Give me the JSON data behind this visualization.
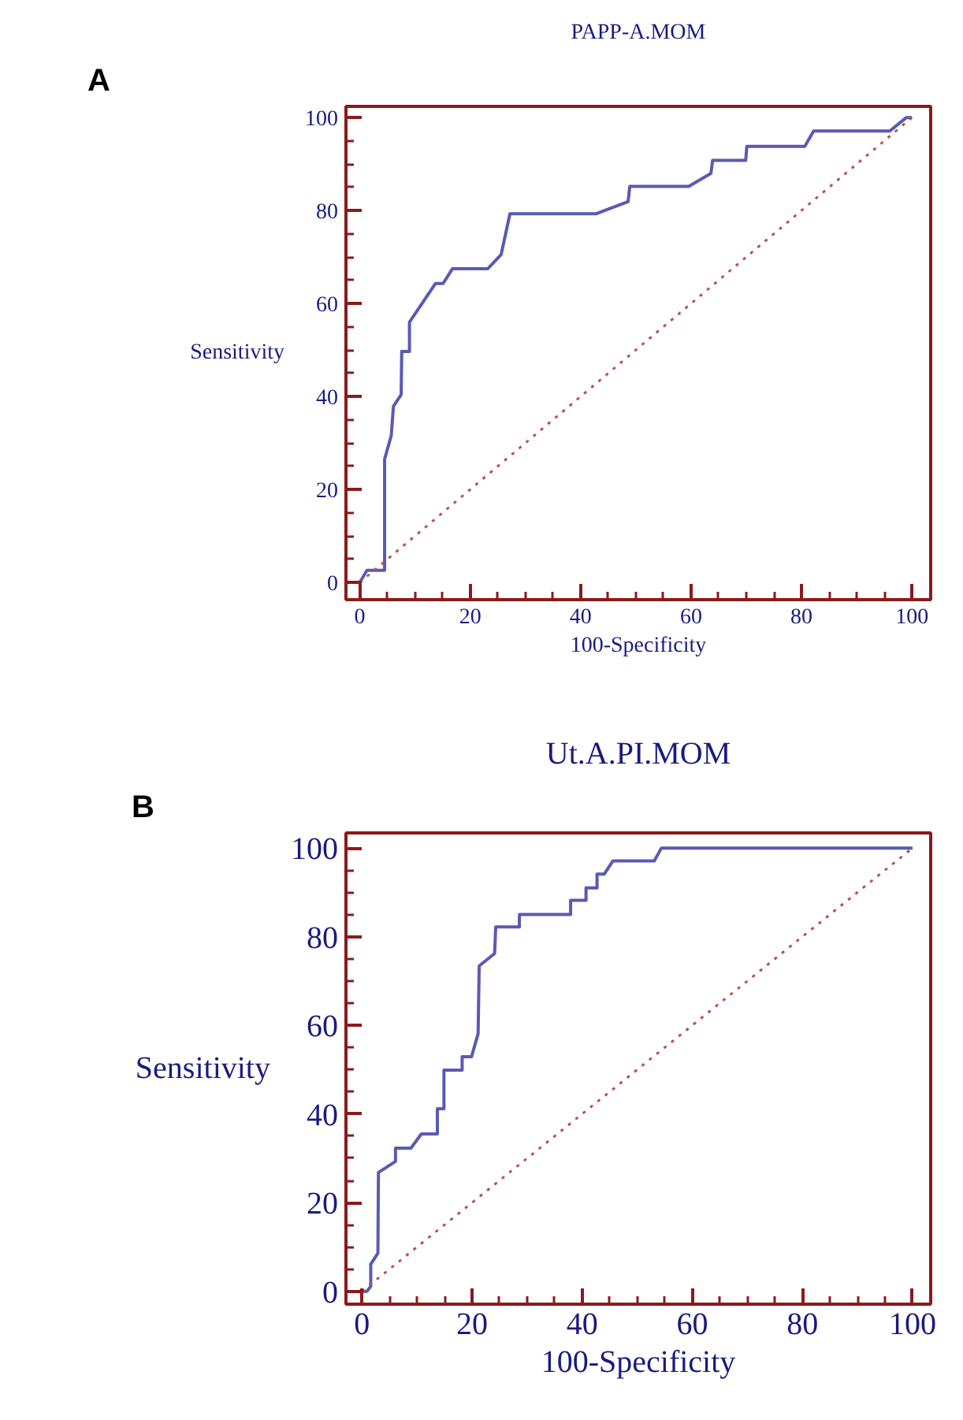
{
  "chart_data": [
    {
      "type": "line",
      "title": "PAPP-A.MOM",
      "xlabel": "100-Specificity",
      "ylabel": "Sensitivity",
      "annotations": [
        "A"
      ],
      "xlim": [
        -2.5,
        103.4
      ],
      "ylim": [
        -3.7,
        102.4
      ],
      "xticks": [
        0,
        {
          "value": 5,
          "label": null
        },
        {
          "value": 10,
          "label": null
        },
        {
          "value": 15,
          "label": null
        },
        20,
        {
          "value": 25,
          "label": null
        },
        {
          "value": 30,
          "label": null
        },
        {
          "value": 35,
          "label": null
        },
        40,
        {
          "value": 45,
          "label": null
        },
        {
          "value": 50,
          "label": null
        },
        {
          "value": 55,
          "label": null
        },
        60,
        {
          "value": 65,
          "label": null
        },
        {
          "value": 70,
          "label": null
        },
        {
          "value": 75,
          "label": null
        },
        80,
        {
          "value": 85,
          "label": null
        },
        {
          "value": 90,
          "label": null
        },
        {
          "value": 95,
          "label": null
        },
        100
      ],
      "yticks": [
        0,
        {
          "value": 5,
          "label": null
        },
        {
          "value": 10,
          "label": null
        },
        {
          "value": 15,
          "label": null
        },
        20,
        {
          "value": 25,
          "label": null
        },
        {
          "value": 30,
          "label": null
        },
        {
          "value": 35,
          "label": null
        },
        40,
        {
          "value": 45,
          "label": null
        },
        {
          "value": 50,
          "label": null
        },
        {
          "value": 55,
          "label": null
        },
        60,
        {
          "value": 65,
          "label": null
        },
        {
          "value": 70,
          "label": null
        },
        {
          "value": 75,
          "label": null
        },
        80,
        {
          "value": 85,
          "label": null
        },
        {
          "value": 90,
          "label": null
        },
        {
          "value": 95,
          "label": null
        },
        100
      ],
      "grid": false,
      "marker": "none",
      "series": [
        {
          "color": "#5a5ab4",
          "line_style": "solid",
          "x": [
            0,
            1.3,
            4.5,
            4.5,
            5.7,
            6.1,
            7.5,
            7.6,
            9,
            9,
            13.7,
            15.1,
            16.8,
            23.2,
            25.6,
            27.2,
            42.8,
            48.6,
            48.9,
            59.6,
            63.6,
            63.9,
            69.9,
            70.1,
            80.6,
            82.2,
            96,
            99,
            100
          ],
          "values": [
            0,
            2.6,
            2.6,
            26.5,
            31.6,
            37.9,
            40.4,
            49.7,
            49.7,
            56,
            64.3,
            64.3,
            67.5,
            67.5,
            70.5,
            79.3,
            79.3,
            81.9,
            85.2,
            85.2,
            88,
            90.8,
            90.8,
            93.8,
            93.8,
            97.1,
            97.1,
            100,
            100
          ]
        },
        {
          "color": "#b85050",
          "line_style": "dotted",
          "x": [
            0,
            100
          ],
          "values": [
            0,
            100
          ]
        }
      ]
    },
    {
      "type": "line",
      "title": "Ut.A.PI.MOM",
      "xlabel": "100-Specificity",
      "ylabel": "Sensitivity",
      "annotations": [
        "B"
      ],
      "xlim": [
        -2.9,
        103.3
      ],
      "ylim": [
        -2.9,
        103.4
      ],
      "xticks": [
        0,
        {
          "value": 5,
          "label": null
        },
        {
          "value": 10,
          "label": null
        },
        {
          "value": 15,
          "label": null
        },
        20,
        {
          "value": 25,
          "label": null
        },
        {
          "value": 30,
          "label": null
        },
        {
          "value": 35,
          "label": null
        },
        40,
        {
          "value": 45,
          "label": null
        },
        {
          "value": 50,
          "label": null
        },
        {
          "value": 55,
          "label": null
        },
        60,
        {
          "value": 65,
          "label": null
        },
        {
          "value": 70,
          "label": null
        },
        {
          "value": 75,
          "label": null
        },
        80,
        {
          "value": 85,
          "label": null
        },
        {
          "value": 90,
          "label": null
        },
        {
          "value": 95,
          "label": null
        },
        100
      ],
      "yticks": [
        0,
        {
          "value": 5,
          "label": null
        },
        {
          "value": 10,
          "label": null
        },
        {
          "value": 15,
          "label": null
        },
        20,
        {
          "value": 25,
          "label": null
        },
        {
          "value": 30,
          "label": null
        },
        {
          "value": 35,
          "label": null
        },
        40,
        {
          "value": 45,
          "label": null
        },
        {
          "value": 50,
          "label": null
        },
        {
          "value": 55,
          "label": null
        },
        60,
        {
          "value": 65,
          "label": null
        },
        {
          "value": 70,
          "label": null
        },
        {
          "value": 75,
          "label": null
        },
        80,
        {
          "value": 85,
          "label": null
        },
        {
          "value": 90,
          "label": null
        },
        {
          "value": 95,
          "label": null
        },
        100
      ],
      "grid": false,
      "marker": "none",
      "series": [
        {
          "color": "#5a5ab4",
          "line_style": "solid",
          "x": [
            0,
            0.9,
            1.6,
            1.6,
            2.9,
            3.0,
            6.1,
            6.1,
            8.9,
            10.8,
            13.7,
            13.7,
            14.9,
            14.9,
            18.2,
            18.2,
            19.9,
            21.1,
            21.3,
            24.1,
            24.3,
            28.6,
            28.6,
            37.9,
            37.9,
            40.7,
            40.7,
            42.7,
            42.7,
            44,
            45.6,
            53.1,
            54.4,
            100
          ],
          "values": [
            0,
            0,
            1.1,
            6.1,
            8.6,
            26.8,
            29.3,
            32.3,
            32.3,
            35.5,
            35.5,
            41.2,
            41.2,
            49.9,
            49.9,
            52.9,
            52.9,
            58.1,
            73.4,
            76.2,
            82.2,
            82.2,
            85,
            85,
            88.2,
            88.2,
            91,
            91,
            94.1,
            94.1,
            97.1,
            97.1,
            100,
            100
          ]
        },
        {
          "color": "#b85050",
          "line_style": "dotted",
          "x": [
            0,
            100
          ],
          "values": [
            0,
            100
          ]
        }
      ]
    }
  ]
}
